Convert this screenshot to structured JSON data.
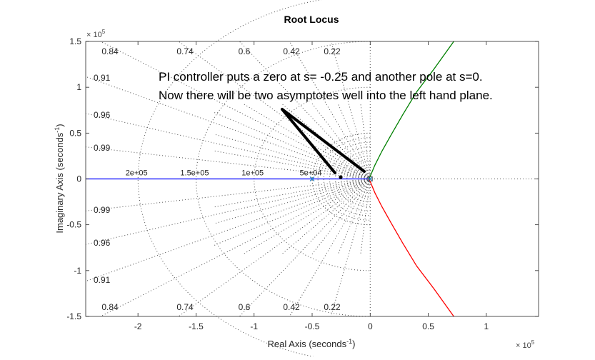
{
  "chart_data": {
    "type": "line",
    "title": "Root Locus",
    "xlabel_main": "Real Axis (seconds",
    "xlabel_sup": "-1",
    "xlabel_close": ")",
    "ylabel_main": "Imaginary Axis (seconds",
    "ylabel_sup": "-1",
    "ylabel_close": ")",
    "exp_base": "× 10",
    "exp_power": "5",
    "xlim": [
      -2.45,
      1.45
    ],
    "ylim": [
      -1.5,
      1.5
    ],
    "x_ticks": [
      -2,
      -1.5,
      -1,
      -0.5,
      0,
      0.5,
      1
    ],
    "x_tick_labels": [
      "-2",
      "-1.5",
      "-1",
      "-0.5",
      "0",
      "0.5",
      "1"
    ],
    "y_ticks": [
      1.5,
      1,
      0.5,
      0,
      -0.5,
      -1,
      -1.5
    ],
    "y_tick_labels": [
      "1.5",
      "1",
      "0.5",
      "0",
      "-0.5",
      "-1",
      "-1.5"
    ],
    "scale_note": "axis values × 10^5",
    "grid": {
      "damping_ratios": [
        0.22,
        0.42,
        0.6,
        0.74,
        0.84,
        0.91,
        0.96,
        0.99
      ],
      "damping_labels": [
        "0.22",
        "0.42",
        "0.6",
        "0.74",
        "0.84",
        "0.91",
        "0.96",
        "0.99"
      ],
      "natural_frequencies": [
        0.5,
        1.0,
        1.5,
        2.0
      ],
      "frequency_labels": [
        "5e+04",
        "1e+05",
        "1.5e+05",
        "2e+05"
      ]
    },
    "series": [
      {
        "color": "#0000ff",
        "x": [
          -2.45,
          -0.5,
          -0.5,
          0
        ],
        "y": [
          0,
          0,
          0,
          0
        ]
      },
      {
        "color": "#008000",
        "x": [
          -0.01,
          0,
          0.04,
          0.1,
          0.18,
          0.28,
          0.4,
          0.55,
          0.72
        ],
        "y": [
          0,
          0.03,
          0.15,
          0.3,
          0.48,
          0.7,
          0.95,
          1.2,
          1.5
        ]
      },
      {
        "color": "#ff0000",
        "x": [
          -0.01,
          0,
          0.04,
          0.1,
          0.18,
          0.28,
          0.4,
          0.55,
          0.72
        ],
        "y": [
          0,
          -0.03,
          -0.15,
          -0.3,
          -0.48,
          -0.7,
          -0.95,
          -1.2,
          -1.5
        ]
      }
    ],
    "poles": [
      {
        "x": -0.5,
        "y": 0
      },
      {
        "x": 0,
        "y": 0
      }
    ],
    "zeros": [
      {
        "x": 0,
        "y": 0
      }
    ],
    "annotation": {
      "lines": [
        "PI controller puts a zero at s=  -0.25 and another pole at s=0.",
        "Now there will be two asymptotes well into the left hand plane."
      ]
    }
  }
}
